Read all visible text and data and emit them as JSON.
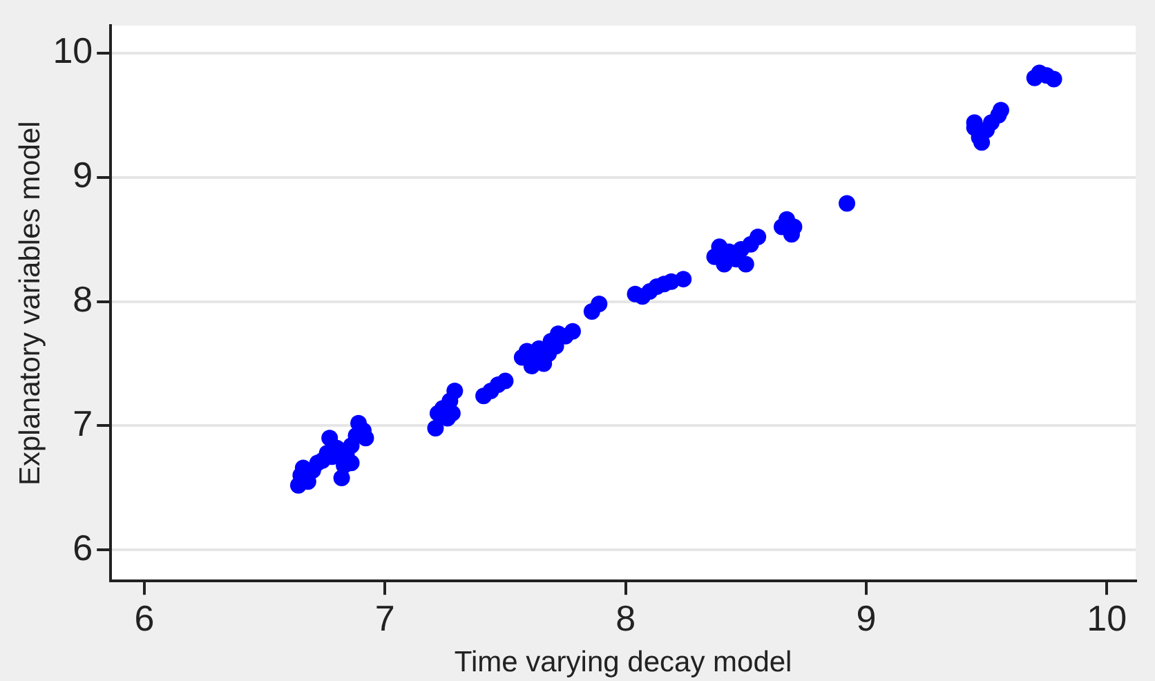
{
  "chart_data": {
    "type": "scatter",
    "xlabel": "Time varying decay model",
    "ylabel": "Explanatory variables model",
    "x": [
      6.64,
      6.65,
      6.66,
      6.68,
      6.7,
      6.72,
      6.74,
      6.76,
      6.77,
      6.78,
      6.8,
      6.82,
      6.83,
      6.84,
      6.86,
      6.88,
      6.89,
      6.91,
      6.92,
      6.86,
      7.21,
      7.22,
      7.24,
      7.26,
      7.27,
      7.29,
      7.28,
      7.41,
      7.44,
      7.47,
      7.5,
      7.57,
      7.59,
      7.61,
      7.63,
      7.64,
      7.66,
      7.68,
      7.69,
      7.71,
      7.72,
      7.75,
      7.78,
      7.86,
      7.89,
      8.04,
      8.07,
      8.1,
      8.13,
      8.16,
      8.19,
      8.24,
      8.37,
      8.39,
      8.41,
      8.43,
      8.46,
      8.48,
      8.5,
      8.52,
      8.55,
      8.65,
      8.67,
      8.69,
      8.7,
      8.92,
      9.45,
      9.47,
      9.48,
      9.5,
      9.52,
      9.55,
      9.56,
      9.45,
      9.7,
      9.72,
      9.75,
      9.78
    ],
    "series": [
      {
        "color": "#0000ff",
        "values": [
          6.52,
          6.6,
          6.66,
          6.55,
          6.64,
          6.7,
          6.72,
          6.78,
          6.9,
          6.75,
          6.82,
          6.58,
          6.68,
          6.76,
          6.84,
          6.92,
          7.02,
          6.96,
          6.9,
          6.7,
          6.98,
          7.1,
          7.14,
          7.06,
          7.2,
          7.28,
          7.1,
          7.24,
          7.28,
          7.33,
          7.36,
          7.55,
          7.6,
          7.48,
          7.54,
          7.62,
          7.5,
          7.58,
          7.68,
          7.64,
          7.74,
          7.72,
          7.76,
          7.92,
          7.98,
          8.06,
          8.04,
          8.08,
          8.12,
          8.14,
          8.16,
          8.18,
          8.36,
          8.44,
          8.3,
          8.4,
          8.34,
          8.42,
          8.3,
          8.46,
          8.52,
          8.6,
          8.66,
          8.54,
          8.6,
          8.79,
          9.4,
          9.32,
          9.28,
          9.38,
          9.44,
          9.5,
          9.54,
          9.44,
          9.8,
          9.84,
          9.82,
          9.79
        ]
      }
    ],
    "xlim": [
      5.86,
      10.12
    ],
    "ylim": [
      5.75,
      10.22
    ],
    "xticks": [
      6,
      7,
      8,
      9,
      10
    ],
    "yticks": [
      6,
      7,
      8,
      9,
      10
    ],
    "grid": "y",
    "legend": false,
    "marker": "circle"
  }
}
